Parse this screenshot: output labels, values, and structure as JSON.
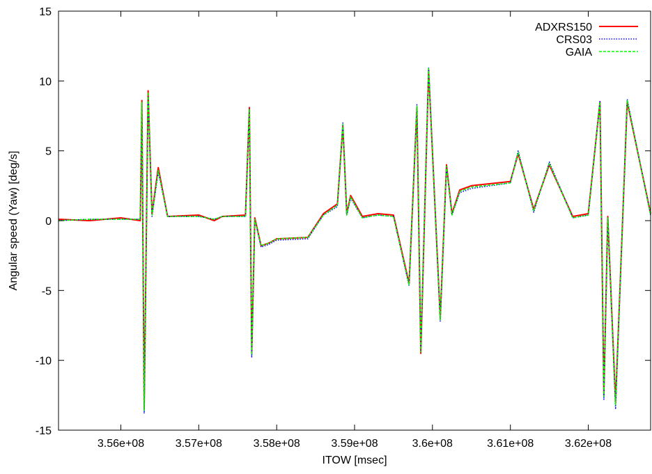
{
  "chart_data": {
    "type": "line",
    "title": "",
    "xlabel": "ITOW [msec]",
    "ylabel": "Angular speed (Yaw) [deg/s]",
    "xlim": [
      355200000,
      362800000
    ],
    "ylim": [
      -15,
      15
    ],
    "x_ticks": [
      356000000,
      357000000,
      358000000,
      359000000,
      360000000,
      361000000,
      362000000
    ],
    "x_tick_labels": [
      "3.56e+08",
      "3.57e+08",
      "3.58e+08",
      "3.59e+08",
      "3.6e+08",
      "3.61e+08",
      "3.62e+08"
    ],
    "y_ticks": [
      -15,
      -10,
      -5,
      0,
      5,
      10,
      15
    ],
    "y_tick_labels": [
      "-15",
      "-10",
      "-5",
      "0",
      "5",
      "10",
      "15"
    ],
    "grid": false,
    "legend_position": "top-right",
    "x": [
      355200000,
      355600000,
      356000000,
      356250000,
      356270000,
      356300000,
      356350000,
      356400000,
      356480000,
      356600000,
      357000000,
      357200000,
      357300000,
      357600000,
      357650000,
      357680000,
      357720000,
      357800000,
      357900000,
      358000000,
      358400000,
      358600000,
      358780000,
      358850000,
      358900000,
      358950000,
      359100000,
      359300000,
      359500000,
      359700000,
      359800000,
      359850000,
      359950000,
      360100000,
      360180000,
      360250000,
      360350000,
      360500000,
      361000000,
      361100000,
      361300000,
      361500000,
      361800000,
      362000000,
      362150000,
      362200000,
      362250000,
      362350000,
      362500000,
      362800000
    ],
    "series": [
      {
        "name": "ADXRS150",
        "color": "#ff0000",
        "style": "solid",
        "values": [
          0.1,
          0.0,
          0.2,
          0.0,
          8.6,
          -13.5,
          9.3,
          0.5,
          3.8,
          0.3,
          0.4,
          0.0,
          0.3,
          0.4,
          8.1,
          -9.5,
          0.2,
          -1.8,
          -1.6,
          -1.3,
          -1.2,
          0.5,
          1.2,
          6.8,
          0.5,
          1.8,
          0.3,
          0.5,
          0.4,
          -4.5,
          8.1,
          -9.5,
          10.8,
          -7.0,
          4.0,
          0.5,
          2.2,
          2.5,
          2.8,
          4.8,
          0.8,
          4.0,
          0.3,
          0.5,
          8.5,
          -12.5,
          0.3,
          -13.0,
          8.5,
          0.5
        ]
      },
      {
        "name": "CRS03",
        "color": "#0000ff",
        "style": "dotted",
        "values": [
          0.0,
          0.1,
          0.1,
          0.1,
          8.4,
          -13.8,
          9.1,
          0.3,
          3.5,
          0.3,
          0.3,
          0.1,
          0.3,
          0.3,
          8.0,
          -9.8,
          0.1,
          -1.9,
          -1.7,
          -1.4,
          -1.3,
          0.4,
          1.0,
          7.0,
          0.4,
          1.6,
          0.2,
          0.4,
          0.3,
          -4.7,
          8.3,
          -9.3,
          11.0,
          -7.2,
          3.8,
          0.4,
          2.0,
          2.3,
          2.7,
          5.0,
          0.6,
          4.2,
          0.2,
          0.4,
          8.6,
          -12.8,
          0.2,
          -13.5,
          8.7,
          0.4
        ]
      },
      {
        "name": "GAIA",
        "color": "#00ff00",
        "style": "dashed",
        "values": [
          0.0,
          0.1,
          0.1,
          0.1,
          8.5,
          -13.6,
          9.2,
          0.4,
          3.6,
          0.3,
          0.3,
          0.1,
          0.3,
          0.3,
          8.0,
          -9.6,
          0.1,
          -1.8,
          -1.6,
          -1.3,
          -1.2,
          0.4,
          1.1,
          6.9,
          0.4,
          1.7,
          0.2,
          0.4,
          0.3,
          -4.6,
          8.2,
          -9.4,
          10.9,
          -7.1,
          3.9,
          0.4,
          2.1,
          2.4,
          2.7,
          4.9,
          0.7,
          4.1,
          0.2,
          0.4,
          8.5,
          -12.6,
          0.2,
          -13.2,
          8.6,
          0.4
        ]
      }
    ]
  }
}
